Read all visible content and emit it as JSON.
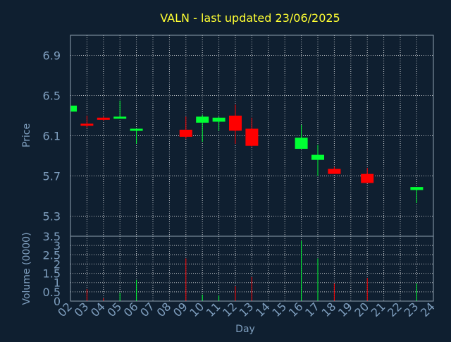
{
  "title": "VALN - last updated 23/06/2025",
  "colors": {
    "background": "#0f1f30",
    "up": "#00ff33",
    "down": "#ff0000",
    "text": "#7f9fbf",
    "title": "#ffff33"
  },
  "chart_data": [
    {
      "type": "candlestick",
      "ylabel": "Price",
      "ylim": [
        5.1,
        7.1
      ],
      "yticks": [
        "6.9",
        "6.5",
        "6.1",
        "5.7",
        "5.3"
      ],
      "grid": true,
      "candles": [
        {
          "day": "02",
          "open": 6.34,
          "close": 6.4,
          "high": 6.4,
          "low": 6.34
        },
        {
          "day": "03",
          "open": 6.22,
          "close": 6.2,
          "high": 6.3,
          "low": 6.18
        },
        {
          "day": "04",
          "open": 6.28,
          "close": 6.26,
          "high": 6.29,
          "low": 6.25
        },
        {
          "day": "05",
          "open": 6.28,
          "close": 6.29,
          "high": 6.45,
          "low": 6.27
        },
        {
          "day": "06",
          "open": 6.15,
          "close": 6.17,
          "high": 6.17,
          "low": 6.02
        },
        {
          "day": "09",
          "open": 6.16,
          "close": 6.09,
          "high": 6.29,
          "low": 6.07
        },
        {
          "day": "10",
          "open": 6.23,
          "close": 6.29,
          "high": 6.31,
          "low": 6.04
        },
        {
          "day": "11",
          "open": 6.24,
          "close": 6.28,
          "high": 6.29,
          "low": 6.15
        },
        {
          "day": "12",
          "open": 6.3,
          "close": 6.15,
          "high": 6.41,
          "low": 6.02
        },
        {
          "day": "13",
          "open": 6.17,
          "close": 6.0,
          "high": 6.28,
          "low": 5.99
        },
        {
          "day": "16",
          "open": 5.97,
          "close": 6.08,
          "high": 6.21,
          "low": 5.97
        },
        {
          "day": "17",
          "open": 5.86,
          "close": 5.91,
          "high": 6.01,
          "low": 5.7
        },
        {
          "day": "18",
          "open": 5.77,
          "close": 5.72,
          "high": 5.79,
          "low": 5.72
        },
        {
          "day": "20",
          "open": 5.72,
          "close": 5.63,
          "high": 5.78,
          "low": 5.63
        },
        {
          "day": "23",
          "open": 5.56,
          "close": 5.59,
          "high": 5.59,
          "low": 5.43
        }
      ]
    },
    {
      "type": "bar",
      "ylabel": "Volume (0000)",
      "ylim": [
        0,
        3.5
      ],
      "yticks": [
        "3.5",
        "3",
        "2.5",
        "2",
        "1.5",
        "1",
        "0.5",
        "0"
      ],
      "grid": true,
      "xlabel": "Day",
      "xticks": [
        "02",
        "03",
        "04",
        "05",
        "06",
        "07",
        "08",
        "09",
        "10",
        "11",
        "12",
        "13",
        "14",
        "15",
        "16",
        "17",
        "18",
        "19",
        "20",
        "21",
        "22",
        "23",
        "24"
      ],
      "bars": [
        {
          "day": "03",
          "value": 0.65,
          "direction": "down"
        },
        {
          "day": "04",
          "value": 0.15,
          "direction": "down"
        },
        {
          "day": "05",
          "value": 0.45,
          "direction": "up"
        },
        {
          "day": "06",
          "value": 1.15,
          "direction": "up"
        },
        {
          "day": "09",
          "value": 2.3,
          "direction": "down"
        },
        {
          "day": "10",
          "value": 0.35,
          "direction": "up"
        },
        {
          "day": "11",
          "value": 0.3,
          "direction": "up"
        },
        {
          "day": "12",
          "value": 0.8,
          "direction": "down"
        },
        {
          "day": "13",
          "value": 1.3,
          "direction": "down"
        },
        {
          "day": "16",
          "value": 3.25,
          "direction": "up"
        },
        {
          "day": "17",
          "value": 2.3,
          "direction": "up"
        },
        {
          "day": "18",
          "value": 0.95,
          "direction": "down"
        },
        {
          "day": "20",
          "value": 1.25,
          "direction": "down"
        },
        {
          "day": "23",
          "value": 0.95,
          "direction": "up"
        }
      ]
    }
  ]
}
